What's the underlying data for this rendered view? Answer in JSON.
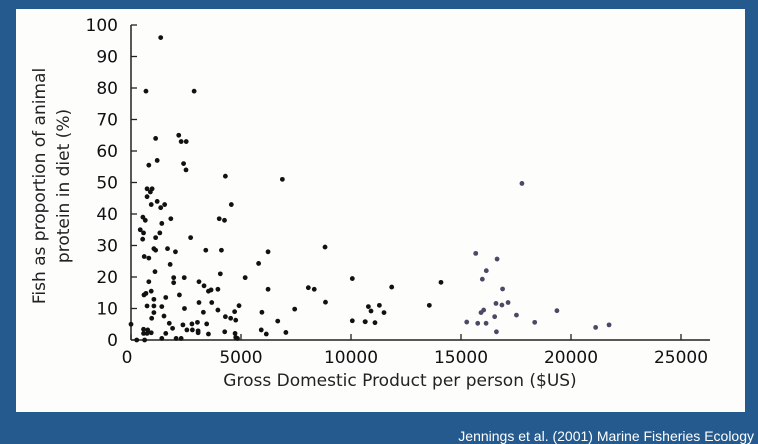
{
  "caption": "Jennings et al. (2001) Marine Fisheries Ecology",
  "colors": {
    "background": "#255a8e",
    "panel": "#fdfdfc",
    "points": "#111111"
  },
  "chart_data": {
    "type": "scatter",
    "title": "",
    "xlabel": "Gross Domestic Product per person ($US)",
    "ylabel": [
      "Fish as proportion of animal",
      "protein in diet (%)"
    ],
    "xlim": [
      0,
      25000
    ],
    "ylim": [
      0,
      100
    ],
    "xticks": [
      "0",
      "5000",
      "10000",
      "15000",
      "20000",
      "25000"
    ],
    "yticks": [
      "0",
      "10",
      "20",
      "30",
      "40",
      "50",
      "60",
      "70",
      "80",
      "90",
      "100"
    ],
    "grid": false,
    "points": [
      [
        1350,
        96
      ],
      [
        680,
        79
      ],
      [
        2870,
        79
      ],
      [
        1120,
        64
      ],
      [
        2170,
        65
      ],
      [
        2280,
        63
      ],
      [
        2510,
        63
      ],
      [
        1190,
        57
      ],
      [
        810,
        55.5
      ],
      [
        2390,
        56
      ],
      [
        2500,
        54
      ],
      [
        4290,
        52
      ],
      [
        6880,
        51
      ],
      [
        730,
        48
      ],
      [
        960,
        48
      ],
      [
        880,
        47
      ],
      [
        730,
        45.5
      ],
      [
        920,
        43
      ],
      [
        1190,
        44
      ],
      [
        1530,
        43
      ],
      [
        1350,
        42
      ],
      [
        4560,
        43
      ],
      [
        540,
        39
      ],
      [
        650,
        38
      ],
      [
        1810,
        38.5
      ],
      [
        4010,
        38.5
      ],
      [
        4250,
        38
      ],
      [
        1400,
        37
      ],
      [
        420,
        35
      ],
      [
        570,
        34
      ],
      [
        1310,
        34
      ],
      [
        530,
        32
      ],
      [
        1120,
        32.5
      ],
      [
        2710,
        32.5
      ],
      [
        1660,
        29
      ],
      [
        8820,
        29.5
      ],
      [
        600,
        26.5
      ],
      [
        810,
        26
      ],
      [
        1040,
        29
      ],
      [
        1120,
        28.5
      ],
      [
        2020,
        28
      ],
      [
        3400,
        28.5
      ],
      [
        4110,
        28.5
      ],
      [
        6230,
        28
      ],
      [
        1780,
        24
      ],
      [
        5800,
        24.3
      ],
      [
        1090,
        21.7
      ],
      [
        4060,
        21
      ],
      [
        5190,
        19.8
      ],
      [
        10060,
        19.5
      ],
      [
        810,
        18.5
      ],
      [
        1940,
        19.8
      ],
      [
        2420,
        19.8
      ],
      [
        1940,
        18.2
      ],
      [
        3090,
        18.5
      ],
      [
        920,
        15.5
      ],
      [
        590,
        14.3
      ],
      [
        680,
        14.8
      ],
      [
        3320,
        17.2
      ],
      [
        3520,
        15.5
      ],
      [
        3640,
        15.9
      ],
      [
        3950,
        16.1
      ],
      [
        6230,
        16.1
      ],
      [
        8060,
        16.6
      ],
      [
        8330,
        16.1
      ],
      [
        1040,
        12.9
      ],
      [
        1580,
        13.5
      ],
      [
        2200,
        14.3
      ],
      [
        3090,
        11.9
      ],
      [
        3670,
        11.9
      ],
      [
        8840,
        12
      ],
      [
        730,
        10.8
      ],
      [
        1040,
        10.8
      ],
      [
        1400,
        10.6
      ],
      [
        2430,
        10
      ],
      [
        4910,
        10.9
      ],
      [
        7440,
        9.8
      ],
      [
        1040,
        8.7
      ],
      [
        3290,
        8.8
      ],
      [
        3950,
        9.5
      ],
      [
        4710,
        9
      ],
      [
        5950,
        8.8
      ],
      [
        940,
        6.9
      ],
      [
        1500,
        7.6
      ],
      [
        4290,
        7.4
      ],
      [
        4530,
        6.9
      ],
      [
        4760,
        6.3
      ],
      [
        6670,
        6
      ],
      [
        10060,
        6.1
      ],
      [
        10650,
        5.8
      ],
      [
        1740,
        5.3
      ],
      [
        2360,
        4.8
      ],
      [
        2770,
        5.1
      ],
      [
        3020,
        5.6
      ],
      [
        3440,
        5.1
      ],
      [
        0,
        5
      ],
      [
        570,
        3.4
      ],
      [
        760,
        3.2
      ],
      [
        1890,
        3.7
      ],
      [
        2540,
        3.2
      ],
      [
        2790,
        3.2
      ],
      [
        3050,
        2.9
      ],
      [
        5920,
        3.2
      ],
      [
        570,
        2.1
      ],
      [
        730,
        2.1
      ],
      [
        920,
        2.3
      ],
      [
        1580,
        2.1
      ],
      [
        3050,
        2.3
      ],
      [
        3520,
        1.9
      ],
      [
        4260,
        2.6
      ],
      [
        4730,
        2.1
      ],
      [
        6150,
        1.9
      ],
      [
        7040,
        2.4
      ],
      [
        1400,
        0.5
      ],
      [
        2050,
        0.5
      ],
      [
        2280,
        0.5
      ],
      [
        4760,
        0.8
      ],
      [
        4840,
        0.5
      ],
      [
        620,
        0
      ],
      [
        260,
        0
      ],
      [
        10640,
        5.8
      ],
      [
        11090,
        5.5
      ],
      [
        10790,
        10.6
      ],
      [
        10910,
        9.2
      ],
      [
        11290,
        11
      ],
      [
        11500,
        8.7
      ],
      [
        11850,
        16.8
      ],
      [
        13560,
        11
      ],
      [
        14090,
        18.3
      ],
      [
        15260,
        5.7
      ],
      [
        15670,
        27.5
      ],
      [
        15760,
        5.3
      ],
      [
        15970,
        19.3
      ],
      [
        16150,
        22
      ],
      [
        16140,
        5.3
      ],
      [
        15910,
        8.7
      ],
      [
        16030,
        9.5
      ],
      [
        16640,
        25.7
      ],
      [
        16590,
        11.6
      ],
      [
        16530,
        7.4
      ],
      [
        16610,
        2.6
      ],
      [
        16860,
        11.1
      ],
      [
        16890,
        16.2
      ],
      [
        17140,
        11.9
      ],
      [
        17520,
        7.9
      ],
      [
        17770,
        49.7
      ],
      [
        18350,
        5.6
      ],
      [
        19360,
        9.3
      ],
      [
        21120,
        4
      ],
      [
        21730,
        4.8
      ]
    ]
  }
}
